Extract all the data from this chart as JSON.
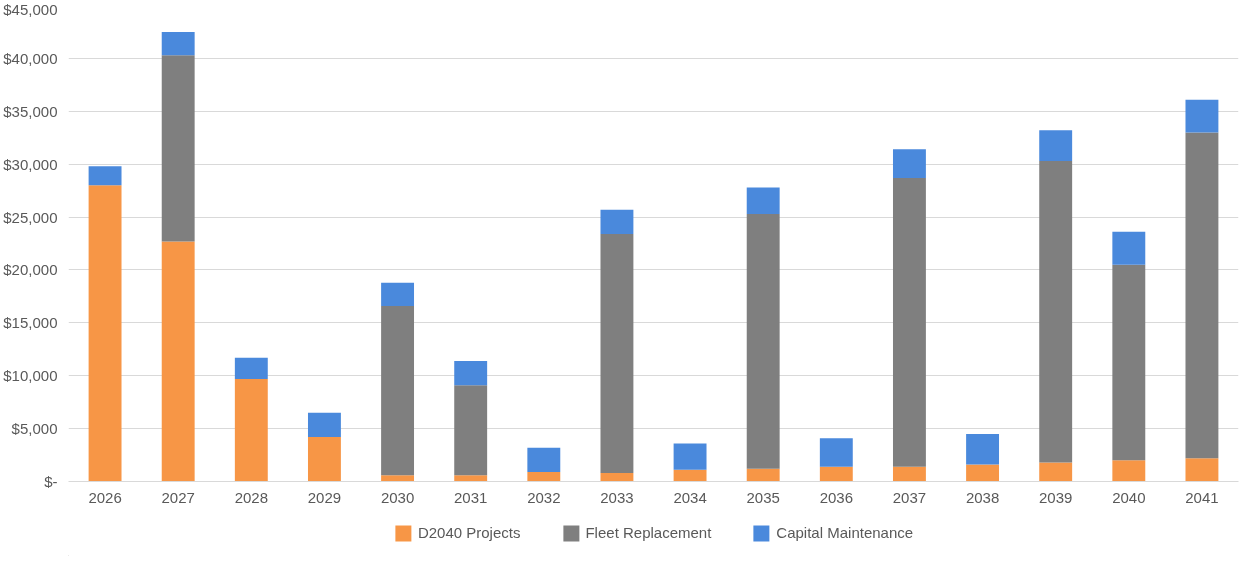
{
  "chart_data": {
    "type": "bar",
    "stacked": true,
    "categories": [
      "2026",
      "2027",
      "2028",
      "2029",
      "2030",
      "2031",
      "2032",
      "2033",
      "2034",
      "2035",
      "2036",
      "2037",
      "2038",
      "2039",
      "2040",
      "2041"
    ],
    "series": [
      {
        "name": "D2040 Projects",
        "color": "#f79646",
        "values": [
          28000,
          22700,
          9700,
          4200,
          600,
          600,
          900,
          800,
          1100,
          1200,
          1400,
          1400,
          1600,
          1800,
          2000,
          2200
        ]
      },
      {
        "name": "Fleet Replacement",
        "color": "#7f7f7f",
        "values": [
          0,
          17600,
          0,
          0,
          16000,
          8500,
          0,
          22600,
          0,
          24100,
          0,
          27300,
          0,
          28500,
          18500,
          30800
        ]
      },
      {
        "name": "Capital Maintenance",
        "color": "#4a89dc",
        "values": [
          1800,
          2200,
          2000,
          2300,
          2200,
          2300,
          2300,
          2300,
          2500,
          2500,
          2700,
          2700,
          2900,
          2900,
          3100,
          3100
        ]
      }
    ],
    "ylim": [
      0,
      45000
    ],
    "yticks": [
      {
        "value": 0,
        "label": "$-"
      },
      {
        "value": 5000,
        "label": "$5,000"
      },
      {
        "value": 10000,
        "label": "$10,000"
      },
      {
        "value": 15000,
        "label": "$15,000"
      },
      {
        "value": 20000,
        "label": "$20,000"
      },
      {
        "value": 25000,
        "label": "$25,000"
      },
      {
        "value": 30000,
        "label": "$30,000"
      },
      {
        "value": 35000,
        "label": "$35,000"
      },
      {
        "value": 40000,
        "label": "$40,000"
      },
      {
        "value": 45000,
        "label": "$45,000"
      }
    ],
    "grid": "y",
    "legend": "bottom"
  }
}
